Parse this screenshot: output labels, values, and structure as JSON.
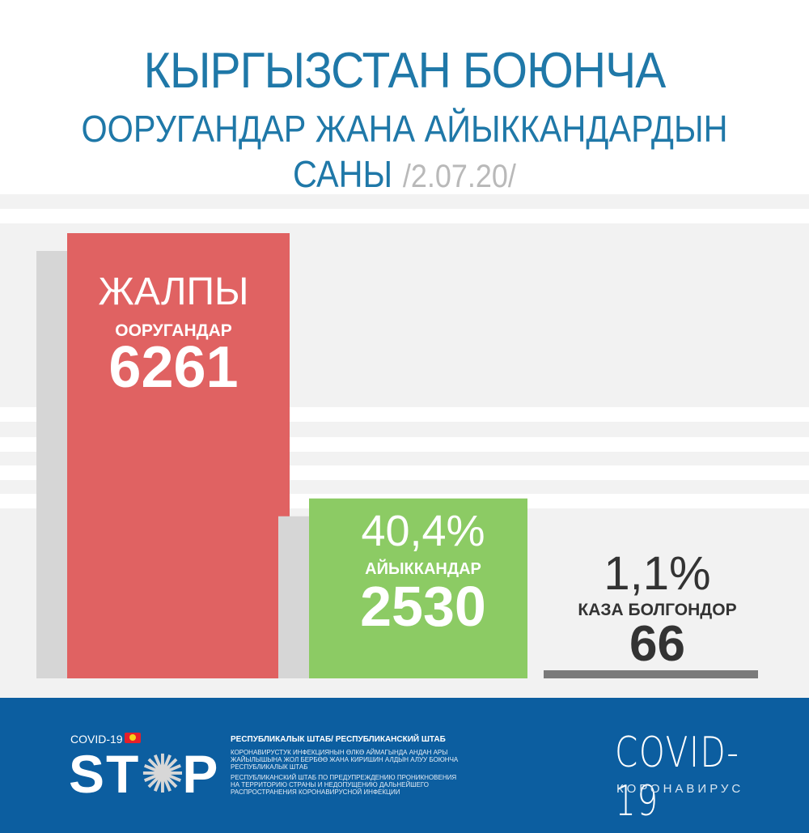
{
  "title": {
    "line1": "КЫРГЫЗСТАН БОЮНЧА",
    "line2": "ООРУГАНДАР ЖАНА АЙЫККАНДАРДЫН",
    "line3": "САНЫ",
    "date": "/2.07.20/"
  },
  "chart_data": {
    "type": "bar",
    "categories": [
      "ЖАЛПЫ ООРУГАНДАР",
      "АЙЫККАНДАР",
      "КАЗА БОЛГОНДОР"
    ],
    "values": [
      6261,
      2530,
      66
    ],
    "title": "КЫРГЫЗСТАН БОЮНЧА ООРУГАНДАР ЖАНА АЙЫККАНДАРДЫН САНЫ /2.07.20/",
    "xlabel": "",
    "ylabel": "",
    "bars": [
      {
        "heading": "ЖАЛПЫ",
        "label": "ООРУГАНДАР",
        "value": 6261,
        "value_text": "6261",
        "percent_text": "",
        "color": "#e06262"
      },
      {
        "heading": "",
        "label": "АЙЫККАНДАР",
        "value": 2530,
        "value_text": "2530",
        "percent_text": "40,4%",
        "color": "#8ccb64"
      },
      {
        "heading": "",
        "label": "КАЗА БОЛГОНДОР",
        "value": 66,
        "value_text": "66",
        "percent_text": "1,1%",
        "color": "#7a7a7a"
      }
    ],
    "grid": false,
    "legend": "none"
  },
  "footer": {
    "covid_small": "COVID-19",
    "stop_s": "ST",
    "stop_p": "P",
    "virus_glyph": "✺",
    "shtab_title": "РЕСПУБЛИКАЛЫК ШТАБ/ РЕСПУБЛИКАНСКИЙ ШТАБ",
    "shtab_text_kg": "КОРОНАВИРУСТУК ИНФЕКЦИЯНЫН ӨЛКӨ АЙМАГЫНДА АНДАН АРЫ ЖАЙЫЛЫШЫНА ЖОЛ БЕРБӨӨ ЖАНА КИРИШИН АЛДЫН АЛУУ БОЮНЧА РЕСПУБЛИКАЛЫК ШТАБ",
    "shtab_text_ru": "РЕСПУБЛИКАНСКИЙ ШТАБ ПО ПРЕДУПРЕЖДЕНИЮ ПРОНИКНОВЕНИЯ НА ТЕРРИТОРИЮ СТРАНЫ И НЕДОПУЩЕНИЮ ДАЛЬНЕЙШЕГО РАСПРОСТРАНЕНИЯ КОРОНАВИРУСНОЙ ИНФЕКЦИИ",
    "covid_big": "COVID-19",
    "covid_sub": "КОРОНАВИРУС"
  }
}
